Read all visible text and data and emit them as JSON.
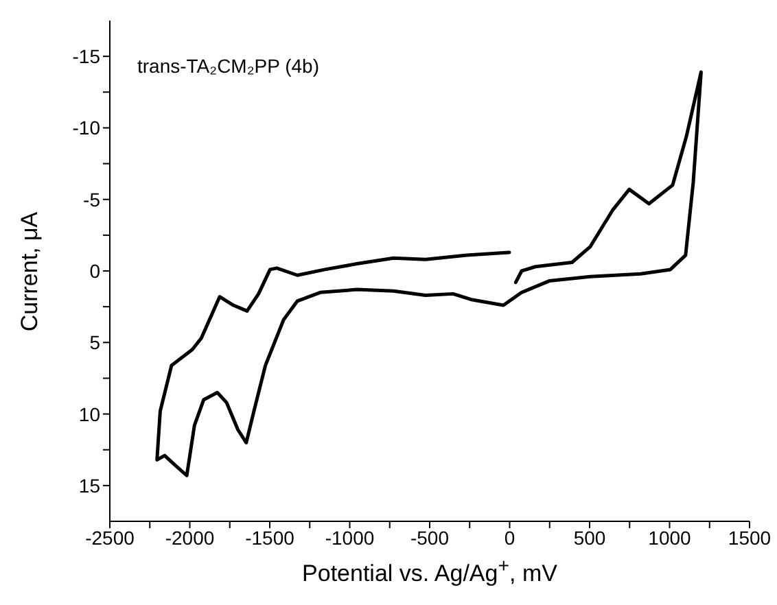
{
  "chart_data": {
    "type": "line",
    "xlabel": "Potential vs. Ag/Ag$^{+}$, mV",
    "ylabel": "Current, μA",
    "annotations": [
      "trans-TA₂CM₂PP (4b)"
    ],
    "xlim": [
      -2500,
      1500
    ],
    "xticks": [
      -2500,
      {
        "value": -2250,
        "label": null
      },
      -2000,
      {
        "value": -1750,
        "label": null
      },
      -1500,
      {
        "value": -1250,
        "label": null
      },
      -1000,
      {
        "value": -750,
        "label": null
      },
      -500,
      {
        "value": -250,
        "label": null
      },
      0,
      {
        "value": 250,
        "label": null
      },
      500,
      {
        "value": 750,
        "label": null
      },
      1000,
      {
        "value": 1250,
        "label": null
      },
      1500
    ],
    "ylim": [
      17.5,
      -17.5
    ],
    "yticks": [
      -15,
      {
        "value": -12.5,
        "label": null
      },
      -10,
      {
        "value": -7.5,
        "label": null
      },
      -5,
      {
        "value": -2.5,
        "label": null
      },
      0,
      {
        "value": 2.5,
        "label": null
      },
      5,
      {
        "value": 7.5,
        "label": null
      },
      10,
      {
        "value": 12.5,
        "label": null
      },
      15
    ],
    "grid": false,
    "legend": false,
    "series": [
      {
        "color": "#000000",
        "x": [
          38,
          75,
          161,
          390,
          504,
          647,
          748,
          871,
          1019,
          1105,
          1197,
          1148,
          1100,
          1005,
          819,
          504,
          247,
          75,
          -39,
          -240,
          -354,
          -526,
          -726,
          -955,
          -1184,
          -1327,
          -1413,
          -1527,
          -1599,
          -1647,
          -1699,
          -1770,
          -1828,
          -1913,
          -1971,
          -2019,
          -2099,
          -2157,
          -2205,
          -2185,
          -2114,
          -1985,
          -1928,
          -1813,
          -1727,
          -1642,
          -1570,
          -1498,
          -1456,
          -1327,
          -1155,
          -955,
          -726,
          -526,
          -268,
          -2
        ],
        "values": [
          0.8,
          0,
          -0.3,
          -0.6,
          -1.7,
          -4.3,
          -5.7,
          -4.7,
          -6.0,
          -9.4,
          -13.9,
          -6.2,
          -1.1,
          -0.1,
          0.2,
          0.4,
          0.7,
          1.5,
          2.4,
          2.0,
          1.6,
          1.7,
          1.4,
          1.3,
          1.5,
          2.1,
          3.4,
          6.6,
          9.8,
          12.0,
          11.1,
          9.2,
          8.5,
          9.0,
          10.8,
          14.3,
          13.5,
          12.9,
          13.2,
          9.8,
          6.6,
          5.5,
          4.7,
          1.8,
          2.4,
          2.8,
          1.6,
          -0.1,
          -0.2,
          0.3,
          -0.1,
          -0.5,
          -0.9,
          -0.8,
          -1.1,
          -1.3
        ]
      }
    ]
  }
}
